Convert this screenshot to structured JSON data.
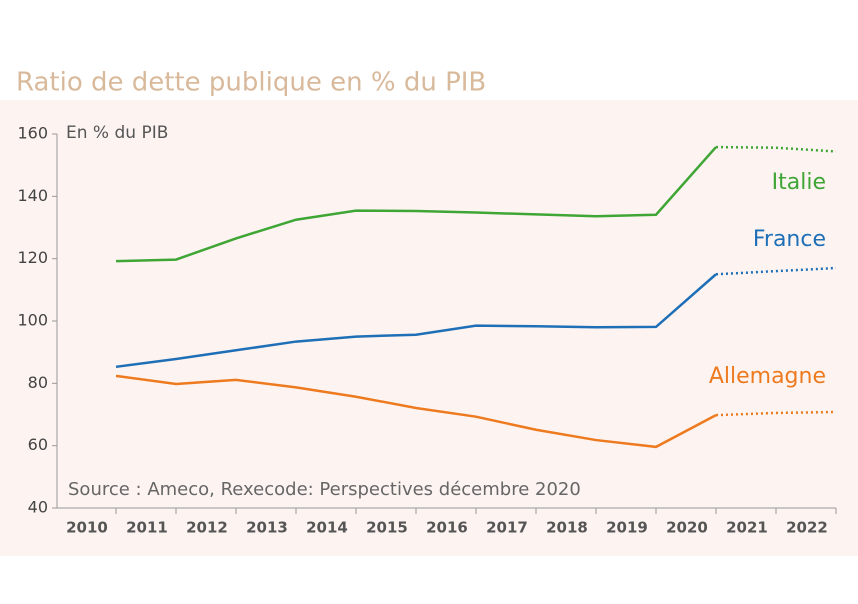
{
  "chart_data": {
    "type": "line",
    "title": "Ratio de dette publique en % du PIB",
    "y_label": "En % du PIB",
    "source": "Source : Ameco, Rexecode: Perspectives décembre 2020",
    "categories": [
      "2010",
      "2011",
      "2012",
      "2013",
      "2014",
      "2015",
      "2016",
      "2017",
      "2018",
      "2019",
      "2020",
      "2021",
      "2022"
    ],
    "forecast_from": "2020",
    "series": [
      {
        "name": "Italie",
        "color": "#3fa535",
        "values": [
          119.2,
          119.7,
          126.5,
          132.5,
          135.4,
          135.3,
          134.8,
          134.2,
          133.6,
          134.1,
          155.8,
          155.6,
          154.4
        ]
      },
      {
        "name": "France",
        "color": "#1f6fb7",
        "values": [
          85.3,
          87.8,
          90.6,
          93.4,
          95.0,
          95.6,
          98.5,
          98.3,
          98.0,
          98.1,
          115.0,
          116.0,
          117.0
        ]
      },
      {
        "name": "Allemagne",
        "color": "#ee7a1f",
        "values": [
          82.4,
          79.8,
          81.1,
          78.7,
          75.7,
          72.1,
          69.3,
          65.1,
          61.8,
          59.6,
          69.8,
          70.5,
          70.8
        ]
      }
    ],
    "ylim": [
      40,
      160
    ],
    "yticks": [
      40,
      60,
      80,
      100,
      120,
      140,
      160
    ]
  }
}
